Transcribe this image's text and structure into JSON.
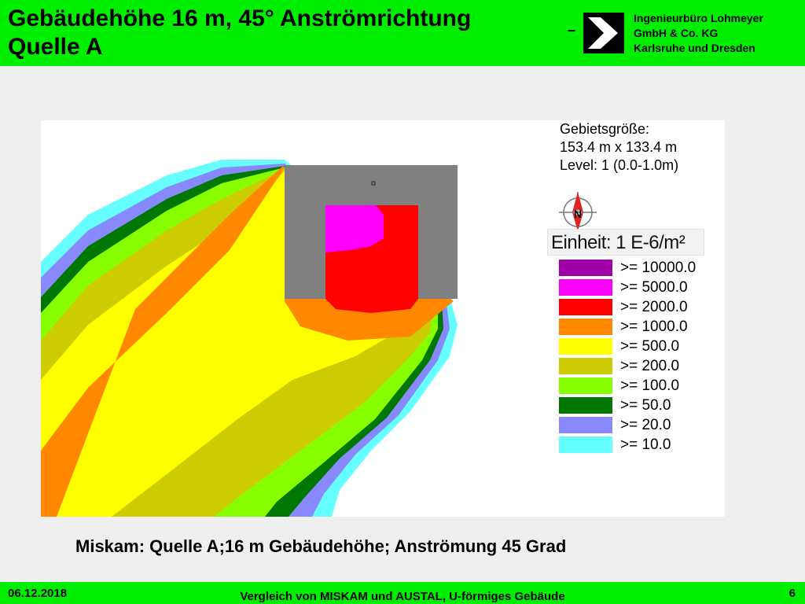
{
  "header": {
    "title_line1": "Gebäudehöhe 16 m, 45° Anströmrichtung",
    "title_line2": "Quelle A",
    "dash": "–",
    "company_line1": "Ingenieurbüro Lohmeyer",
    "company_line2": "GmbH & Co. KG",
    "company_line3": "Karlsruhe und Dresden",
    "logo_icon": "arrow-logo-icon"
  },
  "plot": {
    "info_line1": "Gebietsgröße:",
    "info_line2": "153.4 m x 133.4 m",
    "info_line3": "Level: 1 (0.0-1.0m)",
    "compass_icon": "north-arrow-icon",
    "compass_label": "N",
    "unit": "Einheit: 1 E-6/m²",
    "legend": [
      {
        "label": ">= 10000.0",
        "color": "#a000a8"
      },
      {
        "label": ">= 5000.0",
        "color": "#ff00ff"
      },
      {
        "label": ">= 2000.0",
        "color": "#ff0000"
      },
      {
        "label": ">= 1000.0",
        "color": "#ff8800"
      },
      {
        "label": ">= 500.0",
        "color": "#ffff00"
      },
      {
        "label": ">= 200.0",
        "color": "#cccc00"
      },
      {
        "label": ">= 100.0",
        "color": "#88ff00"
      },
      {
        "label": ">= 50.0",
        "color": "#007700"
      },
      {
        "label": ">= 20.0",
        "color": "#8888ff"
      },
      {
        "label": ">= 10.0",
        "color": "#66ffff"
      }
    ],
    "building_color": "#808080"
  },
  "caption": "Miskam: Quelle A;16 m Gebäudehöhe; Anströmung 45 Grad",
  "footer": {
    "date": "06.12.2018",
    "title": "Vergleich von MISKAM und AUSTAL, U-förmiges Gebäude",
    "page": "6"
  }
}
